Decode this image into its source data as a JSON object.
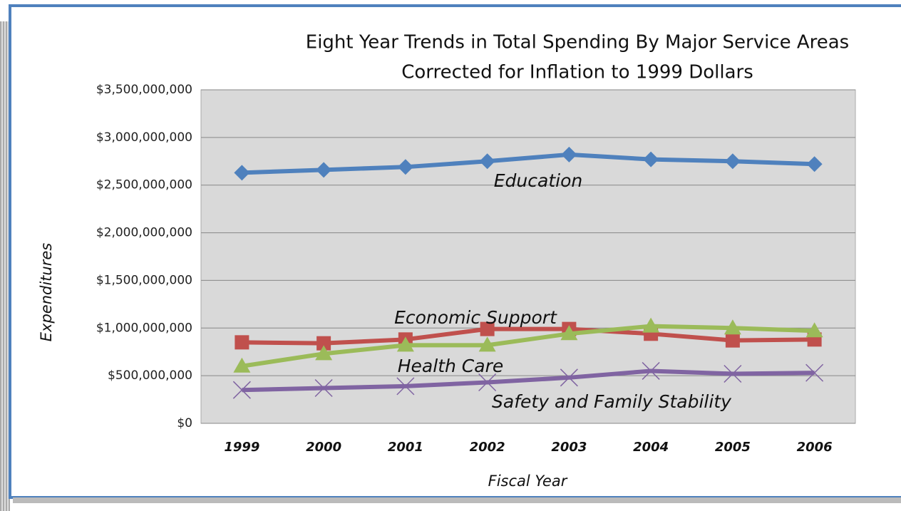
{
  "chart_data": {
    "type": "line",
    "title": "Eight Year Trends in Total Spending By Major Service Areas",
    "subtitle": "Corrected for Inflation to 1999 Dollars",
    "x_label": "Fiscal Year",
    "y_label": "Expenditures",
    "categories": [
      "1999",
      "2000",
      "2001",
      "2002",
      "2003",
      "2004",
      "2005",
      "2006"
    ],
    "series": [
      {
        "name": "Education",
        "color": "#4f81bd",
        "marker": "diamond",
        "values": [
          2630000000,
          2660000000,
          2690000000,
          2750000000,
          2820000000,
          2770000000,
          2750000000,
          2720000000
        ]
      },
      {
        "name": "Economic Support",
        "color": "#c0504d",
        "marker": "square",
        "values": [
          850000000,
          840000000,
          880000000,
          990000000,
          990000000,
          940000000,
          870000000,
          880000000
        ]
      },
      {
        "name": "Health Care",
        "color": "#9bbb59",
        "marker": "triangle",
        "values": [
          600000000,
          730000000,
          820000000,
          820000000,
          940000000,
          1020000000,
          1000000000,
          970000000
        ]
      },
      {
        "name": "Safety and Family Stability",
        "color": "#8064a2",
        "marker": "x",
        "values": [
          350000000,
          370000000,
          390000000,
          430000000,
          480000000,
          550000000,
          520000000,
          530000000
        ]
      }
    ],
    "ylim": [
      0,
      3500000000
    ],
    "yticks": [
      {
        "value": 0,
        "label": "$0"
      },
      {
        "value": 500000000,
        "label": "$500,000,000"
      },
      {
        "value": 1000000000,
        "label": "$1,000,000,000"
      },
      {
        "value": 1500000000,
        "label": "$1,500,000,000"
      },
      {
        "value": 2000000000,
        "label": "$2,000,000,000"
      },
      {
        "value": 2500000000,
        "label": "$2,500,000,000"
      },
      {
        "value": 3000000000,
        "label": "$3,000,000,000"
      },
      {
        "value": 3500000000,
        "label": "$3,500,000,000"
      }
    ],
    "grid": true
  }
}
